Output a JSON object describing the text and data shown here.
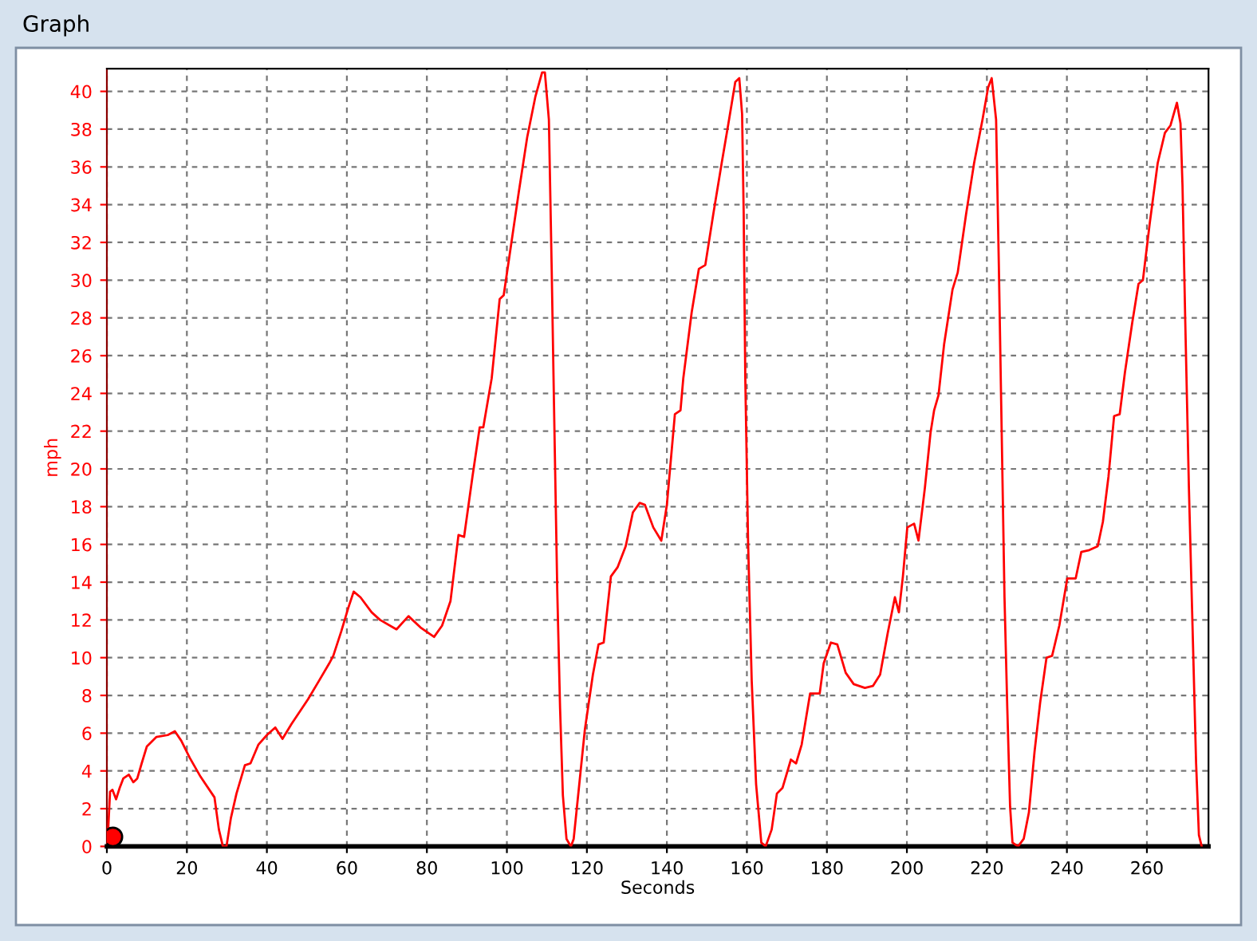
{
  "chart_data": {
    "type": "line",
    "title": "Graph",
    "xlabel": "Seconds",
    "ylabel": "mph",
    "xlim": [
      0,
      275.4
    ],
    "ylim": [
      0,
      41.2
    ],
    "xticks": [
      0,
      20,
      40,
      60,
      80,
      100,
      120,
      140,
      160,
      180,
      200,
      220,
      240,
      260
    ],
    "yticks": [
      0,
      2,
      4,
      6,
      8,
      10,
      12,
      14,
      16,
      18,
      20,
      22,
      24,
      26,
      28,
      30,
      32,
      34,
      36,
      38,
      40
    ],
    "grid": true,
    "series": [
      {
        "color": "#ff0000",
        "x": [
          0.3,
          0.8,
          1.4,
          2.3,
          3.2,
          4.1,
          5.5,
          6.6,
          7.6,
          8.7,
          10,
          12.4,
          15.2,
          17,
          18.6,
          20.7,
          23.4,
          26.9,
          28,
          29,
          29.9,
          31,
          32.4,
          34.5,
          35.9,
          37.9,
          40,
          42.1,
          43.9,
          46.2,
          50.3,
          53.1,
          55.6,
          56.6,
          58.6,
          60.3,
          61.7,
          63.4,
          66.2,
          68.3,
          72.4,
          75.4,
          78.4,
          81.8,
          83.8,
          85.9,
          87.9,
          89.3,
          91.4,
          93.2,
          94.1,
          96.2,
          98.2,
          99.2,
          101,
          103,
          105.1,
          107.1,
          108.8,
          109.5,
          110.5,
          111.2,
          111.9,
          112.6,
          113.3,
          114,
          114.9,
          116,
          116.7,
          118.1,
          119.5,
          121.5,
          122.9,
          124.2,
          126,
          127.7,
          129.7,
          131.5,
          133.2,
          134.5,
          136.6,
          138.6,
          140,
          142,
          143.4,
          144.1,
          146.2,
          148,
          149.6,
          151.6,
          153.7,
          155.3,
          157.1,
          158.1,
          158.8,
          159.2,
          159.6,
          160.3,
          161.2,
          162.3,
          163.6,
          164.7,
          166.2,
          167.5,
          168.9,
          171,
          172.3,
          173.7,
          175.8,
          177.1,
          178.2,
          179.2,
          181,
          182.6,
          184.7,
          186.7,
          189.5,
          191.5,
          193.3,
          195.2,
          197,
          198,
          199,
          200.1,
          201.8,
          202.9,
          204.5,
          205.9,
          206.8,
          207.9,
          209.3,
          211.4,
          212.7,
          214.8,
          216.8,
          218.9,
          220.3,
          221.2,
          222.3,
          223,
          223.7,
          224.4,
          225.1,
          225.8,
          226.4,
          227.8,
          229.2,
          230.5,
          231.9,
          233.3,
          234.9,
          236.3,
          238.1,
          240.1,
          242.2,
          243.6,
          245.6,
          247.7,
          249,
          250.4,
          251.8,
          253.2,
          254.5,
          256.3,
          257.9,
          259,
          260.7,
          262.7,
          264.5,
          265.9,
          267.5,
          268.4,
          268.9,
          269.6,
          270.5,
          271.4,
          272.3,
          273,
          273.7
        ],
        "values": [
          0.8,
          2.9,
          3.0,
          2.5,
          3.1,
          3.6,
          3.8,
          3.4,
          3.6,
          4.4,
          5.3,
          5.8,
          5.9,
          6.1,
          5.6,
          4.7,
          3.7,
          2.6,
          0.9,
          0,
          0,
          1.5,
          2.8,
          4.3,
          4.4,
          5.4,
          5.9,
          6.3,
          5.7,
          6.5,
          7.8,
          8.8,
          9.7,
          10.1,
          11.4,
          12.6,
          13.5,
          13.2,
          12.4,
          12.0,
          11.5,
          12.2,
          11.6,
          11.1,
          11.7,
          13.0,
          16.5,
          16.4,
          19.6,
          22.2,
          22.2,
          24.8,
          29.0,
          29.2,
          31.8,
          34.7,
          37.6,
          39.7,
          41.0,
          41.0,
          38.5,
          30.6,
          21.9,
          13.5,
          7.3,
          2.7,
          0.4,
          0,
          0.4,
          3.3,
          6.2,
          9.1,
          10.7,
          10.8,
          14.3,
          14.8,
          15.9,
          17.7,
          18.2,
          18.1,
          16.9,
          16.2,
          18.1,
          22.9,
          23.1,
          24.8,
          28.3,
          30.6,
          30.8,
          33.5,
          36.2,
          38.2,
          40.5,
          40.7,
          38.8,
          33.5,
          24.8,
          16.1,
          8.8,
          3.3,
          0.2,
          0,
          0.9,
          2.8,
          3.1,
          4.6,
          4.4,
          5.4,
          8.1,
          8.1,
          8.1,
          9.7,
          10.8,
          10.7,
          9.2,
          8.6,
          8.4,
          8.5,
          9.1,
          11.3,
          13.2,
          12.4,
          14.3,
          16.9,
          17.1,
          16.2,
          19.0,
          21.9,
          23.1,
          23.9,
          26.6,
          29.5,
          30.4,
          33.5,
          36.2,
          38.5,
          40.2,
          40.7,
          38.5,
          30.6,
          21.9,
          13.2,
          7.3,
          2.1,
          0.2,
          0,
          0.4,
          1.8,
          5.0,
          7.6,
          10.0,
          10.1,
          11.7,
          14.2,
          14.2,
          15.6,
          15.7,
          15.9,
          17.2,
          19.6,
          22.8,
          22.9,
          25.1,
          27.7,
          29.8,
          30.0,
          33.0,
          36.2,
          37.8,
          38.2,
          39.4,
          38.3,
          35.0,
          27.7,
          19.0,
          11.7,
          4.4,
          0.6,
          0
        ]
      },
      {
        "type": "scatter",
        "color": "#ff0000",
        "marker": "circle",
        "x": [
          1.5
        ],
        "values": [
          0.5
        ]
      }
    ]
  }
}
